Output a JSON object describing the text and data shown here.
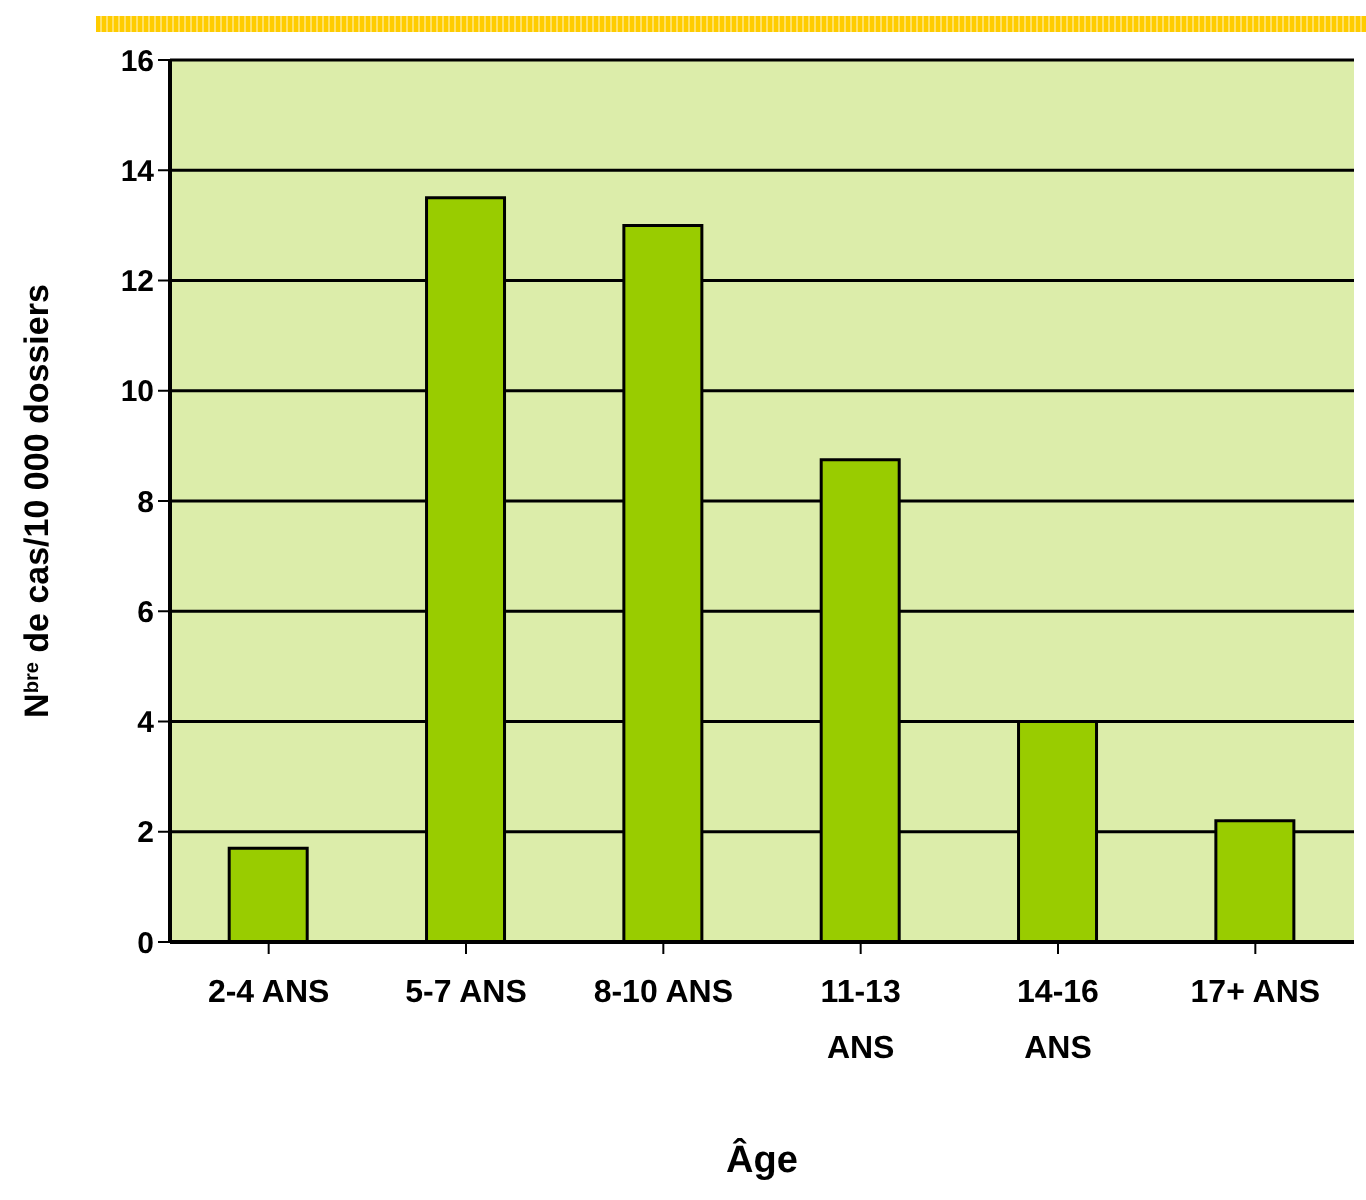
{
  "chart_data": {
    "type": "bar",
    "xlabel": "Âge",
    "ylabel": "N$^{bre}$ de cas/10 000 dossiers",
    "categories": [
      "2-4 ANS",
      "5-7 ANS",
      "8-10 ANS",
      "11-13 ANS",
      "14-16 ANS",
      "17+ ANS"
    ],
    "values": [
      1.7,
      13.5,
      13.0,
      8.75,
      4.0,
      2.2
    ],
    "color": "#99cc00",
    "ylim": [
      0,
      16
    ],
    "yticks": [
      0,
      2,
      4,
      6,
      8,
      10,
      12,
      14,
      16
    ],
    "grid": "y"
  }
}
